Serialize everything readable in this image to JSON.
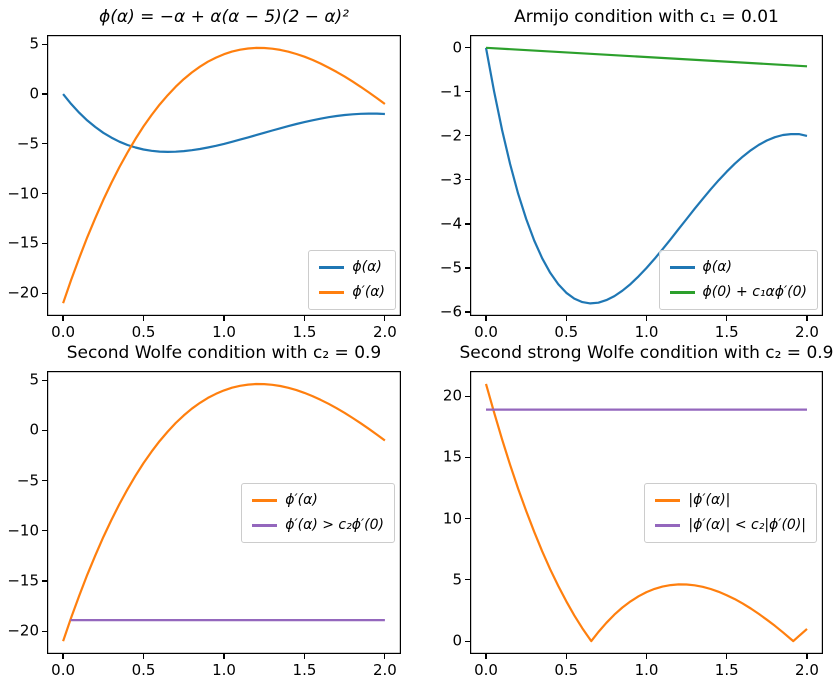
{
  "figure": {
    "background": "#ffffff"
  },
  "palette": {
    "blue": "#1f77b4",
    "orange": "#ff7f0e",
    "green": "#2ca02c",
    "purple": "#9467bd"
  },
  "chart_data": [
    {
      "type": "line",
      "title": "ϕ(α) = −α + α(α − 5)(2 − α)²",
      "xlim": [
        -0.1,
        2.1
      ],
      "ylim": [
        -22.28,
        5.93
      ],
      "xticks": {
        "values": [
          0,
          0.5,
          1,
          1.5,
          2
        ],
        "labels": [
          "0.0",
          "0.5",
          "1.0",
          "1.5",
          "2.0"
        ]
      },
      "yticks": {
        "values": [
          5,
          0,
          -5,
          -10,
          -15,
          -20
        ],
        "labels": [
          "5",
          "0",
          "−5",
          "−10",
          "−15",
          "−20"
        ]
      },
      "legend_loc": "lower right",
      "grid": false,
      "x": [
        0,
        0.05,
        0.1,
        0.15,
        0.2,
        0.25,
        0.3,
        0.35,
        0.4,
        0.45,
        0.5,
        0.55,
        0.6,
        0.65,
        0.7,
        0.75,
        0.8,
        0.85,
        0.9,
        0.95,
        1,
        1.05,
        1.1,
        1.15,
        1.2,
        1.25,
        1.3,
        1.35,
        1.4,
        1.45,
        1.5,
        1.55,
        1.6,
        1.65,
        1.7,
        1.75,
        1.8,
        1.85,
        1.9,
        1.95,
        2
      ],
      "series": [
        {
          "name": "phi",
          "label": "ϕ(α)",
          "color": "#1f77b4",
          "y": [
            0,
            -0.991,
            -1.869,
            -2.64,
            -3.31,
            -3.887,
            -4.375,
            -4.781,
            -5.11,
            -5.369,
            -5.563,
            -5.696,
            -5.774,
            -5.803,
            -5.787,
            -5.73,
            -5.638,
            -5.515,
            -5.365,
            -5.192,
            -5,
            -4.793,
            -4.575,
            -4.349,
            -4.118,
            -3.887,
            -3.657,
            -3.432,
            -3.214,
            -3.007,
            -2.813,
            -2.633,
            -2.47,
            -2.327,
            -2.205,
            -2.105,
            -2.03,
            -1.981,
            -1.959,
            -1.96,
            -2
          ]
        },
        {
          "name": "phi-prime",
          "label": "ϕ′(α)",
          "color": "#ff7f0e",
          "y": [
            -21,
            -18.667,
            -16.466,
            -14.394,
            -12.448,
            -10.625,
            -8.922,
            -7.336,
            -5.864,
            -4.503,
            -3.25,
            -2.102,
            -1.056,
            -0.109,
            0.742,
            1.5,
            2.168,
            2.749,
            3.246,
            3.662,
            4,
            4.263,
            4.454,
            4.576,
            4.632,
            4.625,
            4.558,
            4.434,
            4.256,
            4.027,
            3.75,
            3.428,
            3.064,
            2.661,
            2.222,
            1.75,
            1.248,
            0.719,
            0.166,
            -0.408,
            -1
          ]
        }
      ]
    },
    {
      "type": "line",
      "title": "Armijo condition with c₁ = 0.01",
      "xlim": [
        -0.1,
        2.1
      ],
      "ylim": [
        -6.09,
        0.29
      ],
      "xticks": {
        "values": [
          0,
          0.5,
          1,
          1.5,
          2
        ],
        "labels": [
          "0.0",
          "0.5",
          "1.0",
          "1.5",
          "2.0"
        ]
      },
      "yticks": {
        "values": [
          0,
          -1,
          -2,
          -3,
          -4,
          -5,
          -6
        ],
        "labels": [
          "0",
          "−1",
          "−2",
          "−3",
          "−4",
          "−5",
          "−6"
        ]
      },
      "legend_loc": "lower right",
      "grid": false,
      "x": [
        0,
        0.05,
        0.1,
        0.15,
        0.2,
        0.25,
        0.3,
        0.35,
        0.4,
        0.45,
        0.5,
        0.55,
        0.6,
        0.65,
        0.7,
        0.75,
        0.8,
        0.85,
        0.9,
        0.95,
        1,
        1.05,
        1.1,
        1.15,
        1.2,
        1.25,
        1.3,
        1.35,
        1.4,
        1.45,
        1.5,
        1.55,
        1.6,
        1.65,
        1.7,
        1.75,
        1.8,
        1.85,
        1.9,
        1.95,
        2
      ],
      "series": [
        {
          "name": "phi",
          "label": "ϕ(α)",
          "color": "#1f77b4",
          "y": [
            0,
            -0.991,
            -1.869,
            -2.64,
            -3.31,
            -3.887,
            -4.375,
            -4.781,
            -5.11,
            -5.369,
            -5.563,
            -5.696,
            -5.774,
            -5.803,
            -5.787,
            -5.73,
            -5.638,
            -5.515,
            -5.365,
            -5.192,
            -5,
            -4.793,
            -4.575,
            -4.349,
            -4.118,
            -3.887,
            -3.657,
            -3.432,
            -3.214,
            -3.007,
            -2.813,
            -2.633,
            -2.47,
            -2.327,
            -2.205,
            -2.105,
            -2.03,
            -1.981,
            -1.959,
            -1.96,
            -2
          ]
        },
        {
          "name": "armijo-line",
          "label": "ϕ(0) + c₁αϕ′(0)",
          "color": "#2ca02c",
          "x": [
            0,
            2
          ],
          "y": [
            0,
            -0.42
          ]
        }
      ]
    },
    {
      "type": "line",
      "title": "Second Wolfe condition with c₂ = 0.9",
      "xlim": [
        -0.1,
        2.1
      ],
      "ylim": [
        -22.28,
        5.93
      ],
      "xticks": {
        "values": [
          0,
          0.5,
          1,
          1.5,
          2
        ],
        "labels": [
          "0.0",
          "0.5",
          "1.0",
          "1.5",
          "2.0"
        ]
      },
      "yticks": {
        "values": [
          5,
          0,
          -5,
          -10,
          -15,
          -20
        ],
        "labels": [
          "5",
          "0",
          "−5",
          "−10",
          "−15",
          "−20"
        ]
      },
      "legend_loc": "center right",
      "grid": false,
      "x": [
        0,
        0.05,
        0.1,
        0.15,
        0.2,
        0.25,
        0.3,
        0.35,
        0.4,
        0.45,
        0.5,
        0.55,
        0.6,
        0.65,
        0.7,
        0.75,
        0.8,
        0.85,
        0.9,
        0.95,
        1,
        1.05,
        1.1,
        1.15,
        1.2,
        1.25,
        1.3,
        1.35,
        1.4,
        1.45,
        1.5,
        1.55,
        1.6,
        1.65,
        1.7,
        1.75,
        1.8,
        1.85,
        1.9,
        1.95,
        2
      ],
      "series": [
        {
          "name": "phi-prime",
          "label": "ϕ′(α)",
          "color": "#ff7f0e",
          "y": [
            -21,
            -18.667,
            -16.466,
            -14.394,
            -12.448,
            -10.625,
            -8.922,
            -7.336,
            -5.864,
            -4.503,
            -3.25,
            -2.102,
            -1.056,
            -0.109,
            0.742,
            1.5,
            2.168,
            2.749,
            3.246,
            3.662,
            4,
            4.263,
            4.454,
            4.576,
            4.632,
            4.625,
            4.558,
            4.434,
            4.256,
            4.027,
            3.75,
            3.428,
            3.064,
            2.661,
            2.222,
            1.75,
            1.248,
            0.719,
            0.166,
            -0.408,
            -1
          ]
        },
        {
          "name": "wolfe-threshold",
          "label": "ϕ′(α) > c₂ϕ′(0)",
          "color": "#9467bd",
          "x": [
            0.046,
            2
          ],
          "y": [
            -18.9,
            -18.9
          ]
        }
      ]
    },
    {
      "type": "line",
      "title": "Second strong Wolfe condition with c₂ = 0.9",
      "xlim": [
        -0.1,
        2.1
      ],
      "ylim": [
        -1.05,
        22.05
      ],
      "xticks": {
        "values": [
          0,
          0.5,
          1,
          1.5,
          2
        ],
        "labels": [
          "0.0",
          "0.5",
          "1.0",
          "1.5",
          "2.0"
        ]
      },
      "yticks": {
        "values": [
          0,
          5,
          10,
          15,
          20
        ],
        "labels": [
          "0",
          "5",
          "10",
          "15",
          "20"
        ]
      },
      "legend_loc": "center right",
      "grid": false,
      "x": [
        0,
        0.05,
        0.1,
        0.15,
        0.2,
        0.25,
        0.3,
        0.35,
        0.4,
        0.45,
        0.5,
        0.55,
        0.6,
        0.65,
        0.656,
        0.7,
        0.75,
        0.8,
        0.85,
        0.9,
        0.95,
        1,
        1.05,
        1.1,
        1.15,
        1.2,
        1.25,
        1.3,
        1.35,
        1.4,
        1.45,
        1.5,
        1.55,
        1.6,
        1.65,
        1.7,
        1.75,
        1.8,
        1.85,
        1.9,
        1.915,
        1.95,
        2
      ],
      "series": [
        {
          "name": "abs-phi-prime",
          "label": "|ϕ′(α)|",
          "color": "#ff7f0e",
          "y": [
            21,
            18.667,
            16.466,
            14.394,
            12.448,
            10.625,
            8.922,
            7.336,
            5.864,
            4.503,
            3.25,
            2.102,
            1.056,
            0.109,
            0,
            0.742,
            1.5,
            2.168,
            2.749,
            3.246,
            3.662,
            4,
            4.263,
            4.454,
            4.576,
            4.632,
            4.625,
            4.558,
            4.434,
            4.256,
            4.027,
            3.75,
            3.428,
            3.064,
            2.661,
            2.222,
            1.75,
            1.248,
            0.719,
            0.166,
            0,
            0.408,
            1
          ]
        },
        {
          "name": "strong-wolfe-threshold",
          "label": "|ϕ′(α)| < c₂|ϕ′(0)|",
          "color": "#9467bd",
          "x": [
            0,
            2
          ],
          "y": [
            18.9,
            18.9
          ]
        }
      ]
    }
  ]
}
